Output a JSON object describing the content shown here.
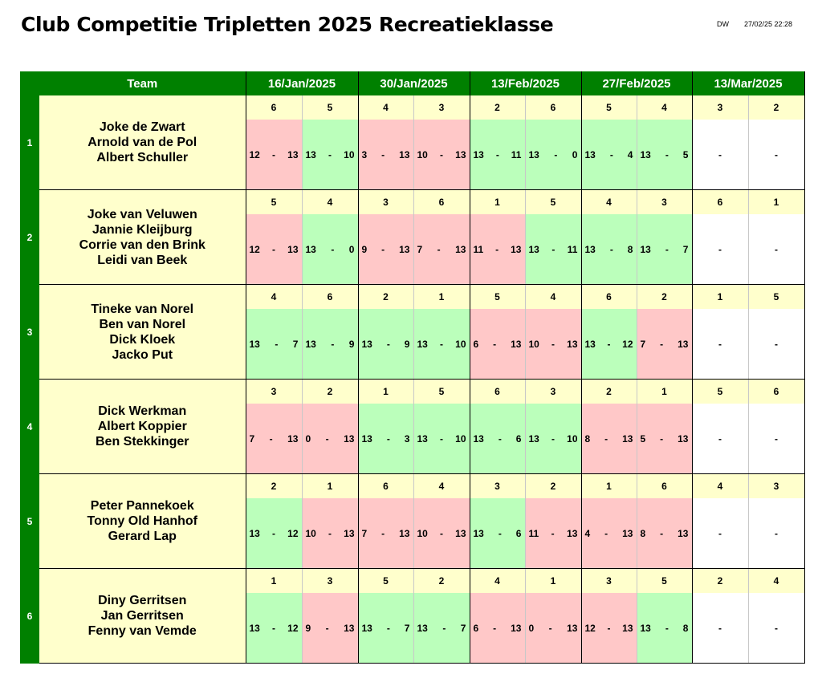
{
  "header": {
    "title": "Club Competitie Tripletten 2025 Recreatieklasse",
    "author": "DW",
    "timestamp": "27/02/25 22:28"
  },
  "table": {
    "team_header": "Team",
    "dates": [
      "16/Jan/2025",
      "30/Jan/2025",
      "13/Feb/2025",
      "27/Feb/2025",
      "13/Mar/2025"
    ],
    "colors": {
      "header": "#008000",
      "team": "#ffffcc",
      "win": "#bbffbb",
      "loss": "#ffc8c8"
    },
    "teams": [
      {
        "num": "1",
        "players": [
          "Joke de Zwart",
          "Arnold van de Pol",
          "Albert Schuller"
        ],
        "opponents": [
          "6",
          "5",
          "4",
          "3",
          "2",
          "6",
          "5",
          "4",
          "3",
          "2"
        ],
        "scores": [
          {
            "a": "12",
            "sep": "-",
            "b": "13",
            "result": "loss"
          },
          {
            "a": "13",
            "sep": "-",
            "b": "10",
            "result": "win"
          },
          {
            "a": "3",
            "sep": "-",
            "b": "13",
            "result": "loss"
          },
          {
            "a": "10",
            "sep": "-",
            "b": "13",
            "result": "loss"
          },
          {
            "a": "13",
            "sep": "-",
            "b": "11",
            "result": "win"
          },
          {
            "a": "13",
            "sep": "-",
            "b": "0",
            "result": "win"
          },
          {
            "a": "13",
            "sep": "-",
            "b": "4",
            "result": "win"
          },
          {
            "a": "13",
            "sep": "-",
            "b": "5",
            "result": "win"
          },
          {
            "a": "",
            "sep": "-",
            "b": "",
            "result": "none"
          },
          {
            "a": "",
            "sep": "-",
            "b": "",
            "result": "none"
          }
        ]
      },
      {
        "num": "2",
        "players": [
          "Joke van Veluwen",
          "Jannie Kleijburg",
          "Corrie van den Brink",
          "Leidi van Beek"
        ],
        "opponents": [
          "5",
          "4",
          "3",
          "6",
          "1",
          "5",
          "4",
          "3",
          "6",
          "1"
        ],
        "scores": [
          {
            "a": "12",
            "sep": "-",
            "b": "13",
            "result": "loss"
          },
          {
            "a": "13",
            "sep": "-",
            "b": "0",
            "result": "win"
          },
          {
            "a": "9",
            "sep": "-",
            "b": "13",
            "result": "loss"
          },
          {
            "a": "7",
            "sep": "-",
            "b": "13",
            "result": "loss"
          },
          {
            "a": "11",
            "sep": "-",
            "b": "13",
            "result": "loss"
          },
          {
            "a": "13",
            "sep": "-",
            "b": "11",
            "result": "win"
          },
          {
            "a": "13",
            "sep": "-",
            "b": "8",
            "result": "win"
          },
          {
            "a": "13",
            "sep": "-",
            "b": "7",
            "result": "win"
          },
          {
            "a": "",
            "sep": "-",
            "b": "",
            "result": "none"
          },
          {
            "a": "",
            "sep": "-",
            "b": "",
            "result": "none"
          }
        ]
      },
      {
        "num": "3",
        "players": [
          "Tineke van Norel",
          "Ben van Norel",
          "Dick Kloek",
          "Jacko Put"
        ],
        "opponents": [
          "4",
          "6",
          "2",
          "1",
          "5",
          "4",
          "6",
          "2",
          "1",
          "5"
        ],
        "scores": [
          {
            "a": "13",
            "sep": "-",
            "b": "7",
            "result": "win"
          },
          {
            "a": "13",
            "sep": "-",
            "b": "9",
            "result": "win"
          },
          {
            "a": "13",
            "sep": "-",
            "b": "9",
            "result": "win"
          },
          {
            "a": "13",
            "sep": "-",
            "b": "10",
            "result": "win"
          },
          {
            "a": "6",
            "sep": "-",
            "b": "13",
            "result": "loss"
          },
          {
            "a": "10",
            "sep": "-",
            "b": "13",
            "result": "loss"
          },
          {
            "a": "13",
            "sep": "-",
            "b": "12",
            "result": "win"
          },
          {
            "a": "7",
            "sep": "-",
            "b": "13",
            "result": "loss"
          },
          {
            "a": "",
            "sep": "-",
            "b": "",
            "result": "none"
          },
          {
            "a": "",
            "sep": "-",
            "b": "",
            "result": "none"
          }
        ]
      },
      {
        "num": "4",
        "players": [
          "Dick Werkman",
          "Albert Koppier",
          "Ben Stekkinger"
        ],
        "opponents": [
          "3",
          "2",
          "1",
          "5",
          "6",
          "3",
          "2",
          "1",
          "5",
          "6"
        ],
        "scores": [
          {
            "a": "7",
            "sep": "-",
            "b": "13",
            "result": "loss"
          },
          {
            "a": "0",
            "sep": "-",
            "b": "13",
            "result": "loss"
          },
          {
            "a": "13",
            "sep": "-",
            "b": "3",
            "result": "win"
          },
          {
            "a": "13",
            "sep": "-",
            "b": "10",
            "result": "win"
          },
          {
            "a": "13",
            "sep": "-",
            "b": "6",
            "result": "win"
          },
          {
            "a": "13",
            "sep": "-",
            "b": "10",
            "result": "win"
          },
          {
            "a": "8",
            "sep": "-",
            "b": "13",
            "result": "loss"
          },
          {
            "a": "5",
            "sep": "-",
            "b": "13",
            "result": "loss"
          },
          {
            "a": "",
            "sep": "-",
            "b": "",
            "result": "none"
          },
          {
            "a": "",
            "sep": "-",
            "b": "",
            "result": "none"
          }
        ]
      },
      {
        "num": "5",
        "players": [
          "Peter Pannekoek",
          "Tonny Old Hanhof",
          "Gerard Lap"
        ],
        "opponents": [
          "2",
          "1",
          "6",
          "4",
          "3",
          "2",
          "1",
          "6",
          "4",
          "3"
        ],
        "scores": [
          {
            "a": "13",
            "sep": "-",
            "b": "12",
            "result": "win"
          },
          {
            "a": "10",
            "sep": "-",
            "b": "13",
            "result": "loss"
          },
          {
            "a": "7",
            "sep": "-",
            "b": "13",
            "result": "loss"
          },
          {
            "a": "10",
            "sep": "-",
            "b": "13",
            "result": "loss"
          },
          {
            "a": "13",
            "sep": "-",
            "b": "6",
            "result": "win"
          },
          {
            "a": "11",
            "sep": "-",
            "b": "13",
            "result": "loss"
          },
          {
            "a": "4",
            "sep": "-",
            "b": "13",
            "result": "loss"
          },
          {
            "a": "8",
            "sep": "-",
            "b": "13",
            "result": "loss"
          },
          {
            "a": "",
            "sep": "-",
            "b": "",
            "result": "none"
          },
          {
            "a": "",
            "sep": "-",
            "b": "",
            "result": "none"
          }
        ]
      },
      {
        "num": "6",
        "players": [
          "Diny Gerritsen",
          "Jan Gerritsen",
          "Fenny van Vemde"
        ],
        "opponents": [
          "1",
          "3",
          "5",
          "2",
          "4",
          "1",
          "3",
          "5",
          "2",
          "4"
        ],
        "scores": [
          {
            "a": "13",
            "sep": "-",
            "b": "12",
            "result": "win"
          },
          {
            "a": "9",
            "sep": "-",
            "b": "13",
            "result": "loss"
          },
          {
            "a": "13",
            "sep": "-",
            "b": "7",
            "result": "win"
          },
          {
            "a": "13",
            "sep": "-",
            "b": "7",
            "result": "win"
          },
          {
            "a": "6",
            "sep": "-",
            "b": "13",
            "result": "loss"
          },
          {
            "a": "0",
            "sep": "-",
            "b": "13",
            "result": "loss"
          },
          {
            "a": "12",
            "sep": "-",
            "b": "13",
            "result": "loss"
          },
          {
            "a": "13",
            "sep": "-",
            "b": "8",
            "result": "win"
          },
          {
            "a": "",
            "sep": "-",
            "b": "",
            "result": "none"
          },
          {
            "a": "",
            "sep": "-",
            "b": "",
            "result": "none"
          }
        ]
      }
    ]
  }
}
